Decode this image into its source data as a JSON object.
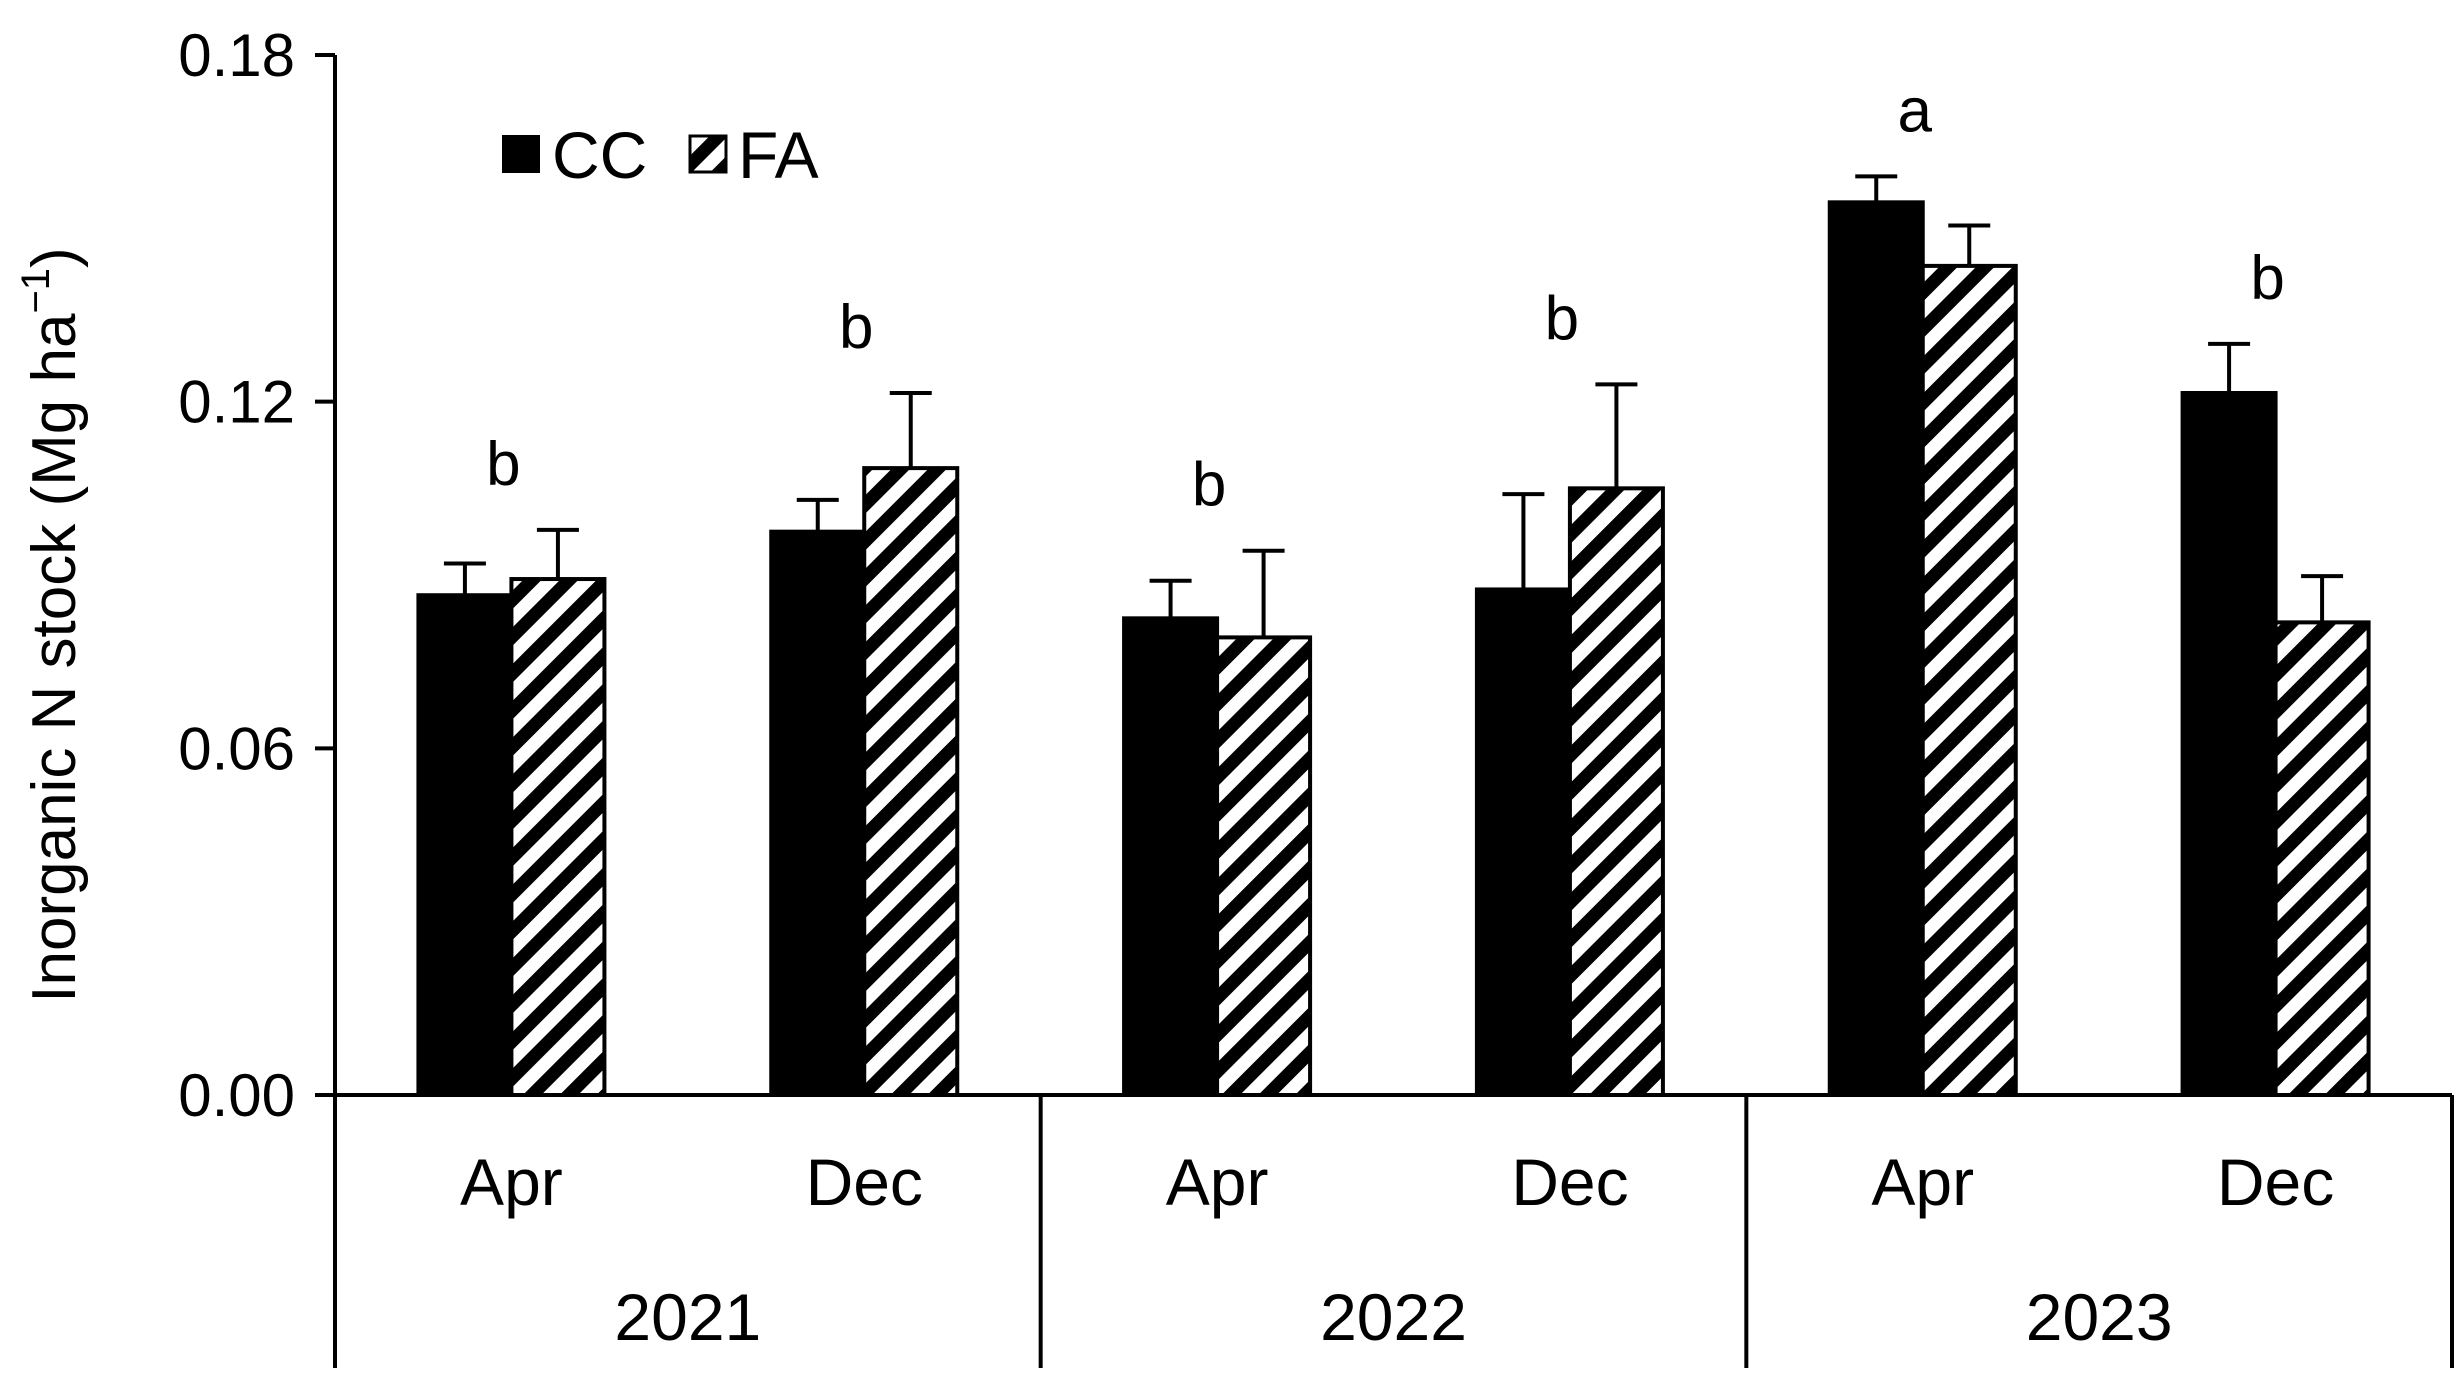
{
  "chart_data": {
    "type": "bar",
    "ylabel": "Inorganic N stock (Mg ha",
    "ylabel_superscript": "−1",
    "ylabel_close": ")",
    "ylim": [
      0,
      0.18
    ],
    "yticks": [
      "0.00",
      "0.06",
      "0.12",
      "0.18"
    ],
    "groups": [
      {
        "year": "2021",
        "months": [
          "Apr",
          "Dec"
        ]
      },
      {
        "year": "2022",
        "months": [
          "Apr",
          "Dec"
        ]
      },
      {
        "year": "2023",
        "months": [
          "Apr",
          "Dec"
        ]
      }
    ],
    "categories": [
      "Apr 2021",
      "Dec 2021",
      "Apr 2022",
      "Dec 2022",
      "Apr 2023",
      "Dec 2023"
    ],
    "series": [
      {
        "name": "CC",
        "fill": "solid",
        "values": [
          0.0865,
          0.0975,
          0.0825,
          0.0875,
          0.1545,
          0.1215
        ],
        "errors": [
          0.0055,
          0.0055,
          0.0065,
          0.0165,
          0.0045,
          0.0085
        ]
      },
      {
        "name": "FA",
        "fill": "hatched",
        "values": [
          0.0893,
          0.1085,
          0.0792,
          0.105,
          0.1435,
          0.0818
        ],
        "errors": [
          0.0085,
          0.013,
          0.015,
          0.018,
          0.007,
          0.008
        ]
      }
    ],
    "significance_letters": [
      "b",
      "b",
      "b",
      "b",
      "a",
      "b"
    ],
    "legend": {
      "position": "top-left",
      "entries": [
        "CC",
        "FA"
      ]
    },
    "colors": {
      "cc": "#000000",
      "fa_stripe": "#000000",
      "fa_bg": "#ffffff",
      "axis": "#000000"
    }
  }
}
